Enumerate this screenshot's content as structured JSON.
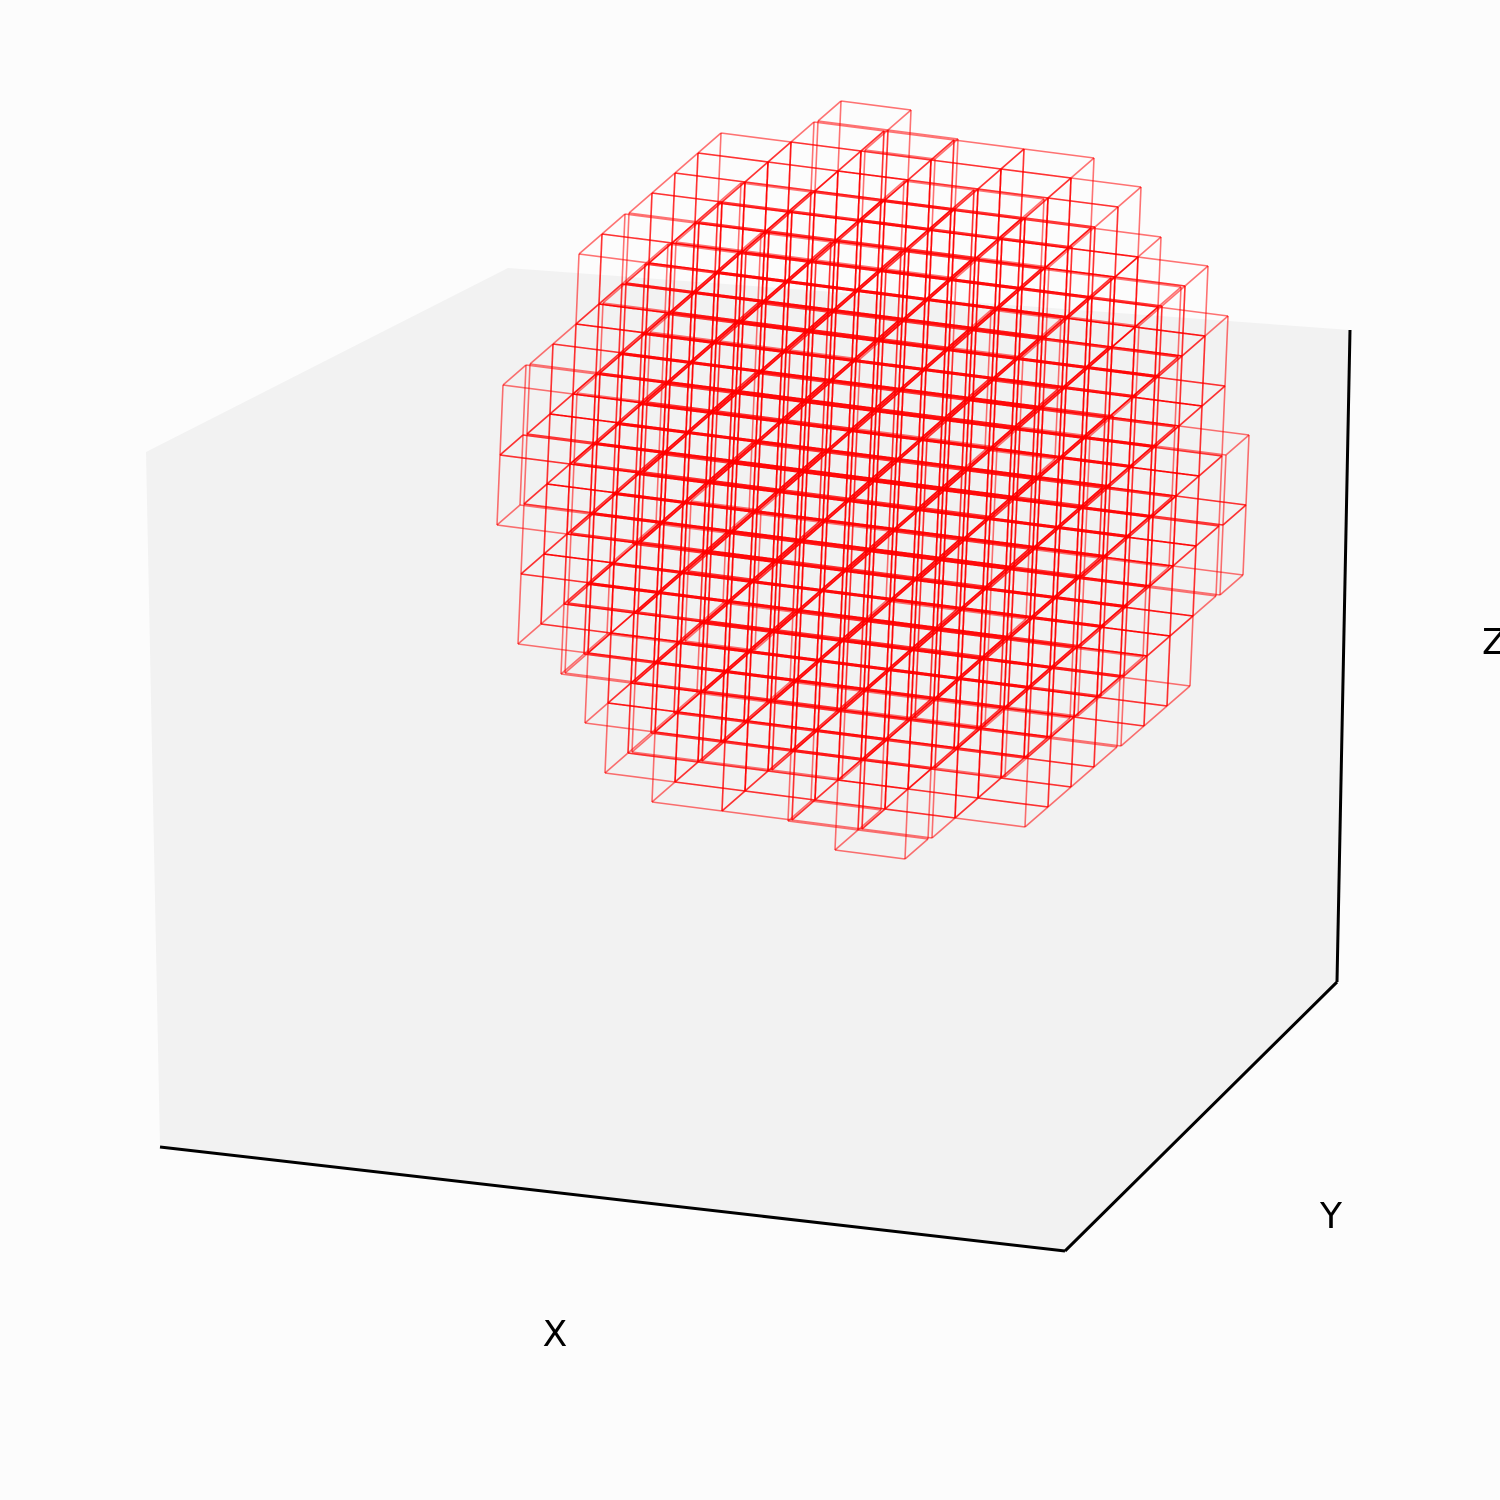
{
  "chart_data": {
    "type": "voxel",
    "title": "",
    "xlabel": "X",
    "ylabel": "Y",
    "zlabel": "Z",
    "tick_labels_shown": false,
    "grid": false,
    "legend": "none",
    "voxel_style": "wireframe",
    "voxel_color": "#ff0000",
    "pane_color": "#f2f2f2",
    "background_color": "#fcfcfc",
    "shape": "approximately spherical cluster of unit cubes on an integer grid",
    "grid_size": [
      10,
      10,
      10
    ],
    "center": [
      4.5,
      4.5,
      4.5
    ],
    "radius": 4.6
  }
}
